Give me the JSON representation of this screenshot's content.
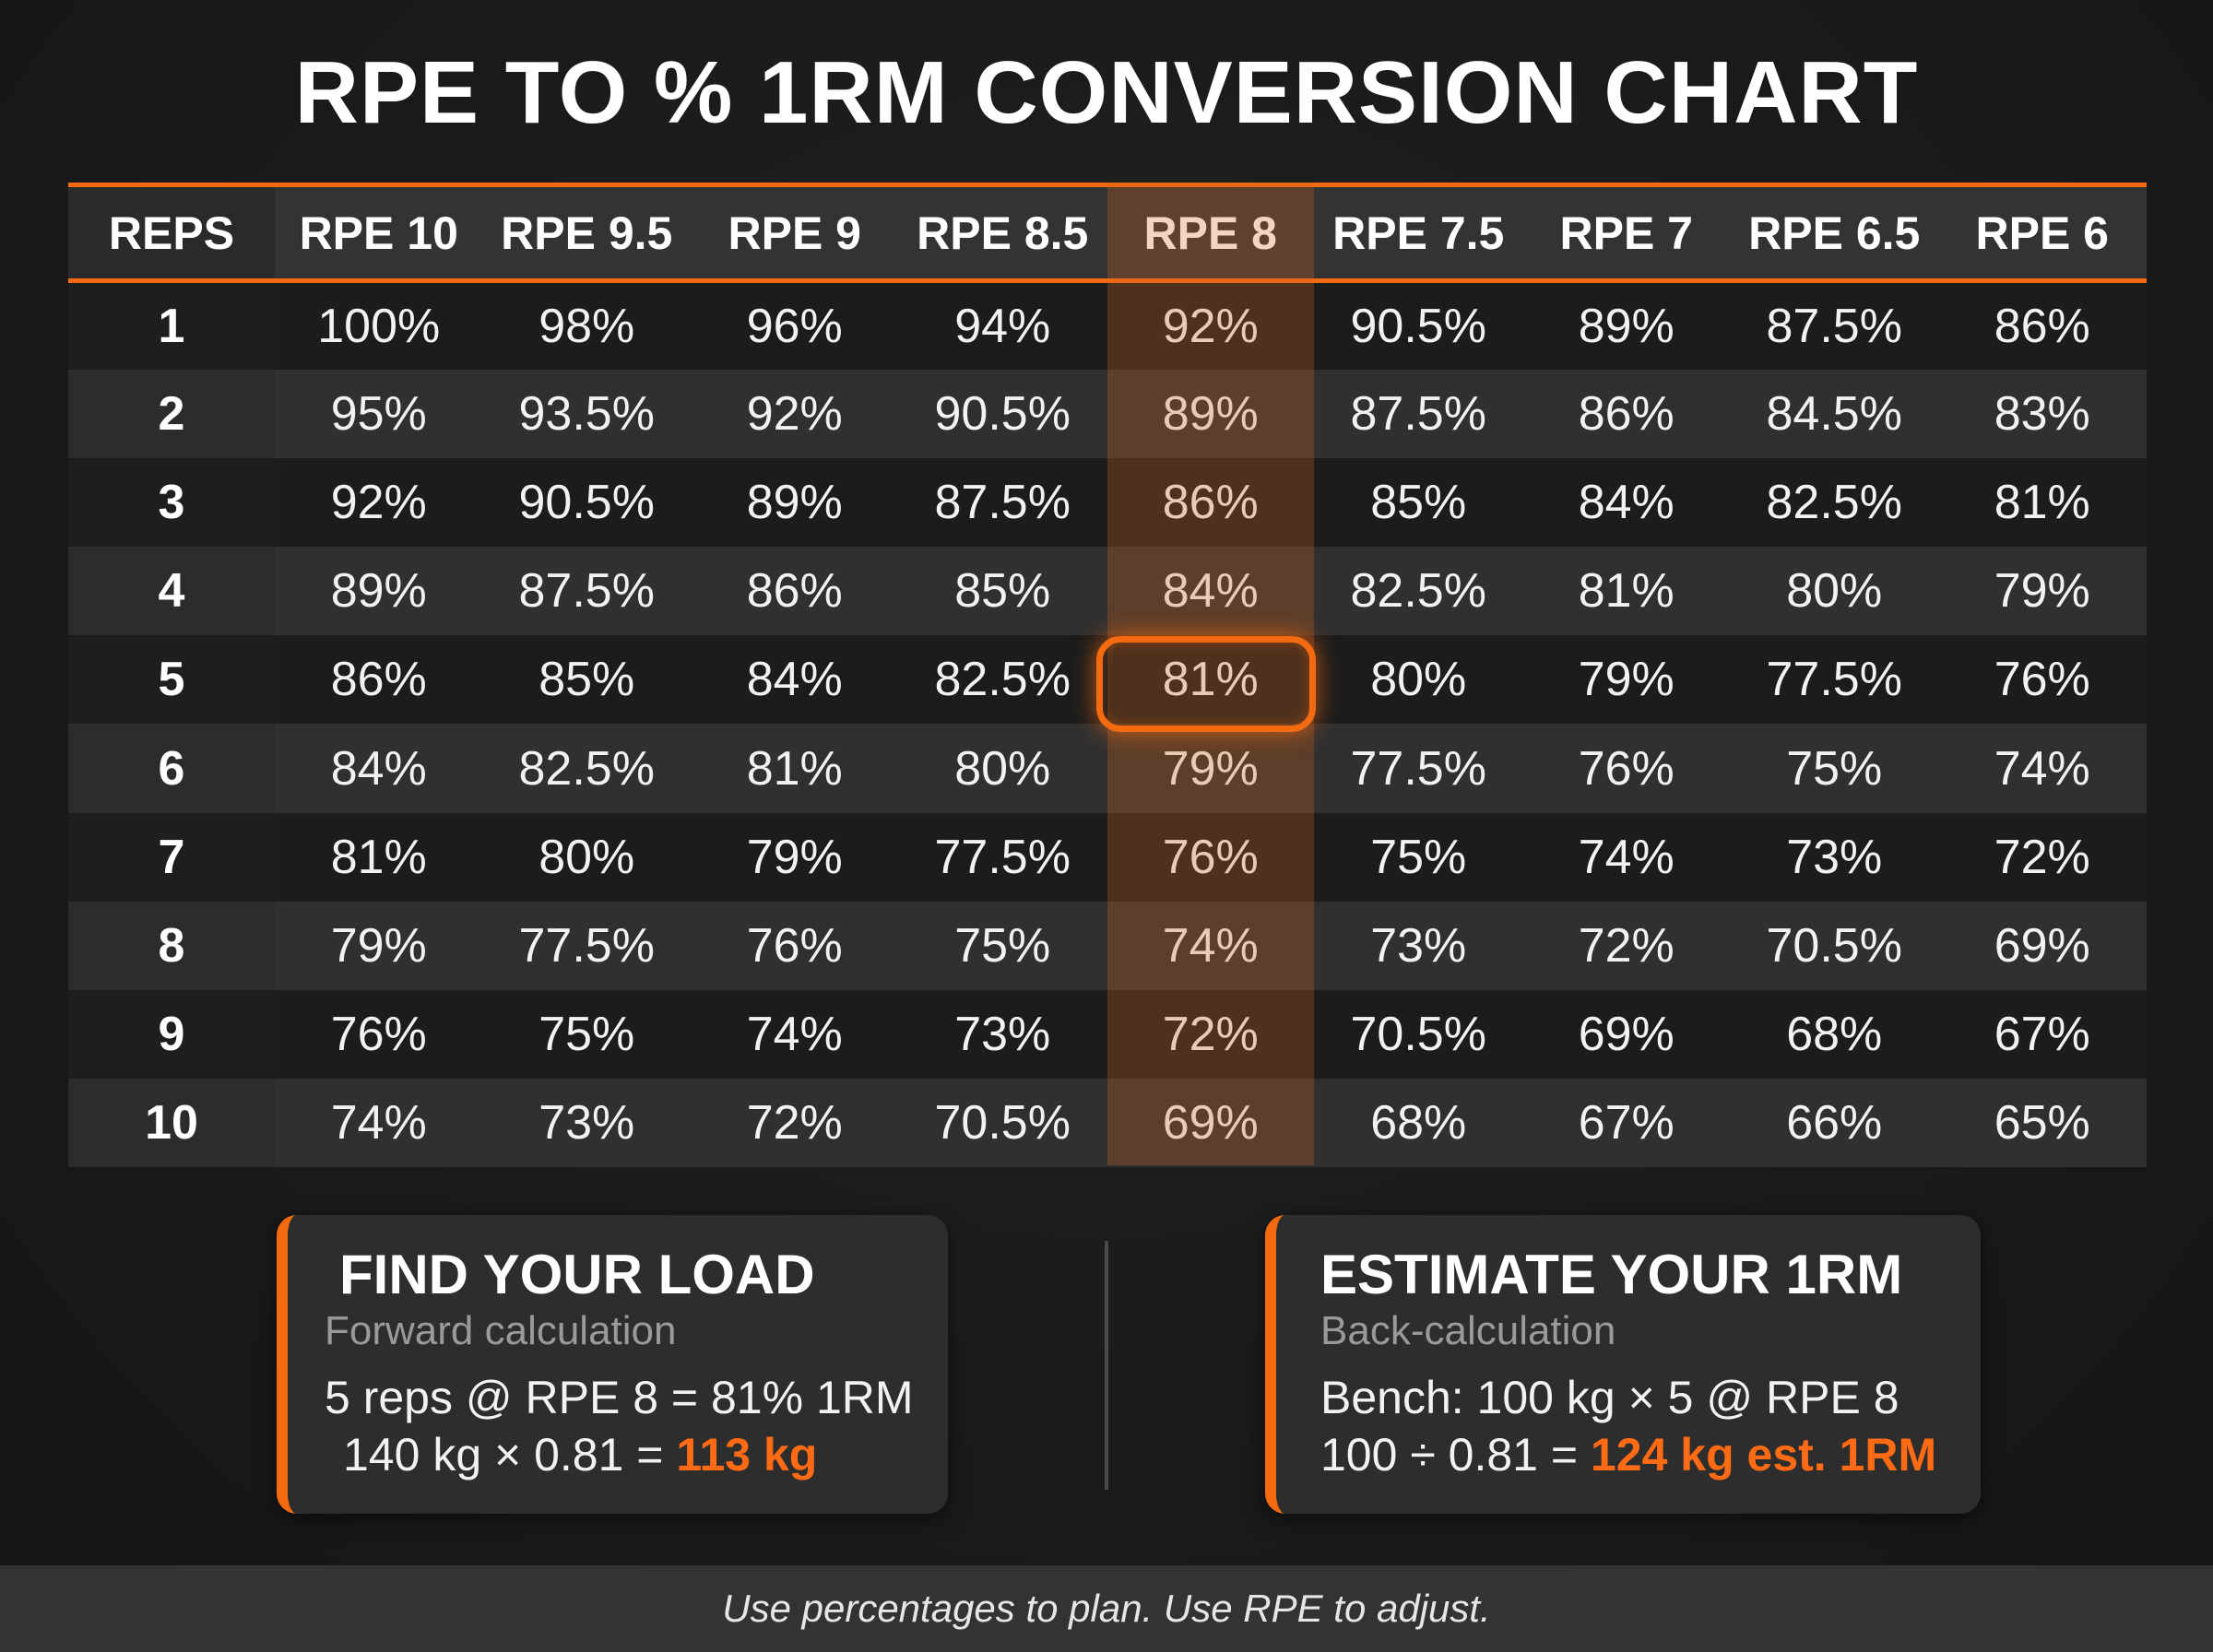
{
  "title": "RPE TO % 1RM CONVERSION CHART",
  "chart_data": {
    "type": "table",
    "title": "RPE TO % 1RM CONVERSION CHART",
    "columns": [
      "REPS",
      "RPE 10",
      "RPE 9.5",
      "RPE 9",
      "RPE 8.5",
      "RPE 8",
      "RPE 7.5",
      "RPE 7",
      "RPE 6.5",
      "RPE 6"
    ],
    "rows": [
      [
        "1",
        "100%",
        "98%",
        "96%",
        "94%",
        "92%",
        "90.5%",
        "89%",
        "87.5%",
        "86%"
      ],
      [
        "2",
        "95%",
        "93.5%",
        "92%",
        "90.5%",
        "89%",
        "87.5%",
        "86%",
        "84.5%",
        "83%"
      ],
      [
        "3",
        "92%",
        "90.5%",
        "89%",
        "87.5%",
        "86%",
        "85%",
        "84%",
        "82.5%",
        "81%"
      ],
      [
        "4",
        "89%",
        "87.5%",
        "86%",
        "85%",
        "84%",
        "82.5%",
        "81%",
        "80%",
        "79%"
      ],
      [
        "5",
        "86%",
        "85%",
        "84%",
        "82.5%",
        "81%",
        "80%",
        "79%",
        "77.5%",
        "76%"
      ],
      [
        "6",
        "84%",
        "82.5%",
        "81%",
        "80%",
        "79%",
        "77.5%",
        "76%",
        "75%",
        "74%"
      ],
      [
        "7",
        "81%",
        "80%",
        "79%",
        "77.5%",
        "76%",
        "75%",
        "74%",
        "73%",
        "72%"
      ],
      [
        "8",
        "79%",
        "77.5%",
        "76%",
        "75%",
        "74%",
        "73%",
        "72%",
        "70.5%",
        "69%"
      ],
      [
        "9",
        "76%",
        "75%",
        "74%",
        "73%",
        "72%",
        "70.5%",
        "69%",
        "68%",
        "67%"
      ],
      [
        "10",
        "74%",
        "73%",
        "72%",
        "70.5%",
        "69%",
        "68%",
        "67%",
        "66%",
        "65%"
      ]
    ],
    "highlighted_column": "RPE 8",
    "highlighted_cell": {
      "reps": "5",
      "rpe": "RPE 8",
      "value": "81%"
    }
  },
  "cards": {
    "forward": {
      "title": "FIND YOUR LOAD",
      "subtitle": "Forward calculation",
      "line1": "5 reps @ RPE 8 = 81% 1RM",
      "line2_prefix": "140 kg × 0.81 = ",
      "line2_result": "113 kg"
    },
    "back": {
      "title": "ESTIMATE YOUR 1RM",
      "subtitle": "Back-calculation",
      "line1": "Bench: 100 kg × 5 @ RPE 8",
      "line2_prefix": "100 ÷ 0.81 = ",
      "line2_result": "124 kg est. 1RM"
    }
  },
  "footer": "Use percentages to plan. Use RPE to adjust.",
  "colors": {
    "accent": "#f36a10",
    "background": "#1b1b1b",
    "header_bg": "#333333",
    "row_alt": "#303030"
  }
}
